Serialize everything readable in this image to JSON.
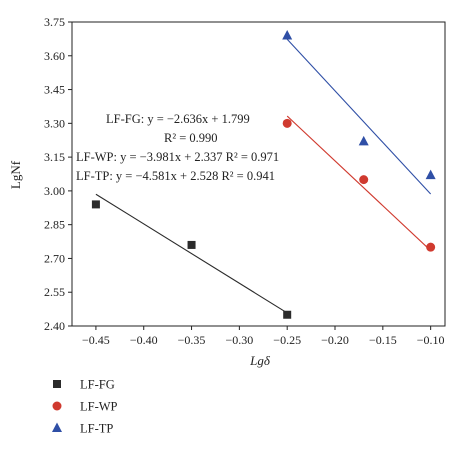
{
  "chart_data": {
    "type": "scatter",
    "title": "",
    "xlabel": "Lgδ",
    "ylabel": "LgNf",
    "xlim": [
      -0.475,
      -0.085
    ],
    "ylim": [
      2.4,
      3.75
    ],
    "xticks": [
      -0.45,
      -0.4,
      -0.35,
      -0.3,
      -0.25,
      -0.2,
      -0.15,
      -0.1
    ],
    "xtick_labels": [
      "−0.45",
      "−0.40",
      "−0.35",
      "−0.30",
      "−0.25",
      "−0.20",
      "−0.15",
      "−0.10"
    ],
    "yticks": [
      2.4,
      2.55,
      2.7,
      2.85,
      3.0,
      3.15,
      3.3,
      3.45,
      3.6,
      3.75
    ],
    "ytick_labels": [
      "2.40",
      "2.55",
      "2.70",
      "2.85",
      "3.00",
      "3.15",
      "3.30",
      "3.45",
      "3.60",
      "3.75"
    ],
    "grid": false,
    "legend_position": "bottom-left",
    "series": [
      {
        "name": "LF-FG",
        "marker": "square",
        "color": "#2b2b2b",
        "x": [
          -0.45,
          -0.35,
          -0.25
        ],
        "y": [
          2.94,
          2.76,
          2.45
        ],
        "fit": {
          "slope": -2.636,
          "intercept": 1.799,
          "x_range": [
            -0.45,
            -0.25
          ]
        }
      },
      {
        "name": "LF-WP",
        "marker": "circle",
        "color": "#d03a2f",
        "x": [
          -0.25,
          -0.17,
          -0.1
        ],
        "y": [
          3.3,
          3.05,
          2.75
        ],
        "fit": {
          "slope": -3.981,
          "intercept": 2.337,
          "x_range": [
            -0.25,
            -0.1
          ]
        }
      },
      {
        "name": "LF-TP",
        "marker": "triangle",
        "color": "#2f4fa6",
        "x": [
          -0.25,
          -0.17,
          -0.1
        ],
        "y": [
          3.69,
          3.22,
          3.07
        ],
        "fit": {
          "slope": -4.581,
          "intercept": 2.528,
          "x_range": [
            -0.25,
            -0.1
          ]
        }
      }
    ],
    "annotations": [
      "LF-FG: y = −2.636x + 1.799",
      "R² = 0.990",
      "LF-WP: y = −3.981x + 2.337 R² = 0.971",
      "LF-TP: y = −4.581x + 2.528 R² = 0.941"
    ]
  }
}
